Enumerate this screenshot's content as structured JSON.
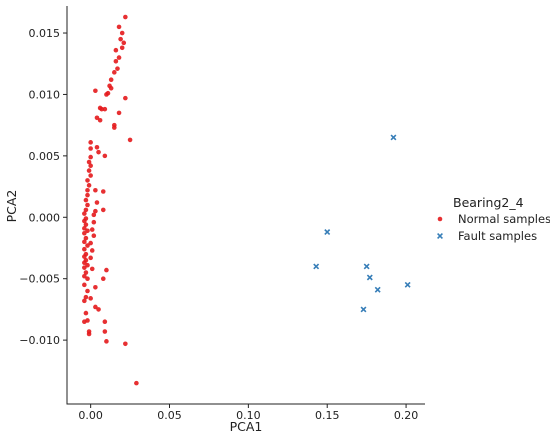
{
  "chart_data": {
    "type": "scatter",
    "xlabel": "PCA1",
    "ylabel": "PCA2",
    "xlim": [
      -0.015,
      0.212
    ],
    "ylim": [
      -0.0152,
      0.0172
    ],
    "x_ticks": [
      0.0,
      0.05,
      0.1,
      0.15,
      0.2
    ],
    "x_tick_labels": [
      "0.00",
      "0.05",
      "0.10",
      "0.15",
      "0.20"
    ],
    "y_ticks": [
      -0.01,
      -0.005,
      0.0,
      0.005,
      0.01,
      0.015
    ],
    "y_tick_labels": [
      "−0.010",
      "−0.005",
      "0.000",
      "0.005",
      "0.010",
      "0.015"
    ],
    "grid": false,
    "legend": {
      "title": "Bearing2_4",
      "placement": "right"
    },
    "series": [
      {
        "name": "Normal samples",
        "marker": "circle",
        "color": "#e41a1c",
        "points": [
          [
            0.022,
            0.0163
          ],
          [
            0.018,
            0.0155
          ],
          [
            0.02,
            0.015
          ],
          [
            0.019,
            0.0145
          ],
          [
            0.021,
            0.0142
          ],
          [
            0.02,
            0.0138
          ],
          [
            0.016,
            0.0136
          ],
          [
            0.018,
            0.013
          ],
          [
            0.016,
            0.0127
          ],
          [
            0.017,
            0.0121
          ],
          [
            0.015,
            0.0118
          ],
          [
            0.013,
            0.0112
          ],
          [
            0.012,
            0.0107
          ],
          [
            0.013,
            0.0105
          ],
          [
            0.003,
            0.0103
          ],
          [
            0.011,
            0.0101
          ],
          [
            0.01,
            0.01
          ],
          [
            0.022,
            0.0097
          ],
          [
            0.006,
            0.0089
          ],
          [
            0.009,
            0.0088
          ],
          [
            0.007,
            0.0088
          ],
          [
            0.018,
            0.0085
          ],
          [
            0.004,
            0.0081
          ],
          [
            0.006,
            0.0079
          ],
          [
            0.015,
            0.0075
          ],
          [
            0.015,
            0.0073
          ],
          [
            0.025,
            0.0063
          ],
          [
            0.0,
            0.0061
          ],
          [
            0.004,
            0.0057
          ],
          [
            0.0,
            0.0056
          ],
          [
            0.005,
            0.0053
          ],
          [
            0.009,
            0.005
          ],
          [
            0.0,
            0.0049
          ],
          [
            -0.001,
            0.0045
          ],
          [
            0.0,
            0.0042
          ],
          [
            -0.001,
            0.0038
          ],
          [
            0.0,
            0.0034
          ],
          [
            -0.002,
            0.003
          ],
          [
            -0.001,
            0.0026
          ],
          [
            -0.002,
            0.0022
          ],
          [
            0.008,
            0.0021
          ],
          [
            0.003,
            0.0022
          ],
          [
            -0.002,
            0.0018
          ],
          [
            -0.003,
            0.0014
          ],
          [
            0.004,
            0.0012
          ],
          [
            -0.002,
            0.001
          ],
          [
            0.008,
            0.0006
          ],
          [
            0.003,
            0.0005
          ],
          [
            -0.003,
            0.0006
          ],
          [
            -0.004,
            0.0003
          ],
          [
            0.002,
            0.0002
          ],
          [
            -0.003,
            -0.0001
          ],
          [
            -0.004,
            -0.0003
          ],
          [
            0.002,
            -0.0004
          ],
          [
            -0.003,
            -0.0006
          ],
          [
            -0.004,
            -0.0009
          ],
          [
            0.001,
            -0.001
          ],
          [
            -0.002,
            -0.0011
          ],
          [
            -0.004,
            -0.0013
          ],
          [
            0.002,
            -0.0015
          ],
          [
            -0.003,
            -0.0017
          ],
          [
            -0.004,
            -0.002
          ],
          [
            0.0,
            -0.0021
          ],
          [
            -0.002,
            -0.0023
          ],
          [
            -0.004,
            -0.0026
          ],
          [
            0.001,
            -0.0027
          ],
          [
            -0.003,
            -0.003
          ],
          [
            -0.004,
            -0.0032
          ],
          [
            0.0,
            -0.0033
          ],
          [
            -0.003,
            -0.0035
          ],
          [
            -0.004,
            -0.0037
          ],
          [
            -0.002,
            -0.0039
          ],
          [
            -0.004,
            -0.0041
          ],
          [
            0.001,
            -0.0042
          ],
          [
            0.01,
            -0.0043
          ],
          [
            -0.003,
            -0.0045
          ],
          [
            -0.004,
            -0.0048
          ],
          [
            0.008,
            -0.005
          ],
          [
            -0.002,
            -0.005
          ],
          [
            -0.004,
            -0.0055
          ],
          [
            0.003,
            -0.0057
          ],
          [
            -0.002,
            -0.006
          ],
          [
            -0.003,
            -0.0065
          ],
          [
            0.0,
            -0.0066
          ],
          [
            -0.004,
            -0.0068
          ],
          [
            0.003,
            -0.0073
          ],
          [
            0.005,
            -0.0075
          ],
          [
            -0.003,
            -0.0078
          ],
          [
            0.009,
            -0.0085
          ],
          [
            -0.004,
            -0.0085
          ],
          [
            -0.002,
            -0.0084
          ],
          [
            0.009,
            -0.0093
          ],
          [
            -0.001,
            -0.0093
          ],
          [
            -0.001,
            -0.0095
          ],
          [
            0.01,
            -0.0101
          ],
          [
            0.022,
            -0.0103
          ],
          [
            0.029,
            -0.0135
          ]
        ]
      },
      {
        "name": "Fault samples",
        "marker": "x",
        "color": "#377eb8",
        "points": [
          [
            0.192,
            0.0065
          ],
          [
            0.15,
            -0.0012
          ],
          [
            0.143,
            -0.004
          ],
          [
            0.175,
            -0.004
          ],
          [
            0.177,
            -0.0049
          ],
          [
            0.201,
            -0.0055
          ],
          [
            0.182,
            -0.0059
          ],
          [
            0.173,
            -0.0075
          ]
        ]
      }
    ]
  }
}
